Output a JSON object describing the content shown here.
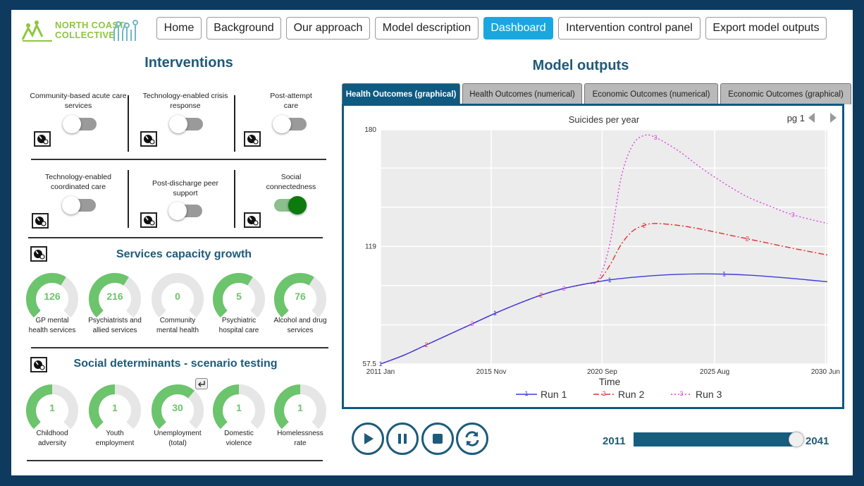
{
  "logo": {
    "line1": "NORTH COAST",
    "line2": "COLLECTIVE"
  },
  "nav": {
    "items": [
      {
        "label": "Home",
        "active": false
      },
      {
        "label": "Background",
        "active": false
      },
      {
        "label": "Our approach",
        "active": false
      },
      {
        "label": "Model description",
        "active": false
      },
      {
        "label": "Dashboard",
        "active": true
      },
      {
        "label": "Intervention control panel",
        "active": false
      },
      {
        "label": "Export model outputs",
        "active": false
      }
    ]
  },
  "interventions": {
    "title": "Interventions",
    "items": [
      {
        "label": "Community-based acute care services",
        "on": false
      },
      {
        "label": "Technology-enabled crisis response",
        "on": false
      },
      {
        "label": "Post-attempt care",
        "on": false
      },
      {
        "label": "Technology-enabled coordinated care",
        "on": false
      },
      {
        "label": "Post-discharge peer support",
        "on": false
      },
      {
        "label": "Social connectedness",
        "on": true
      }
    ]
  },
  "capacity": {
    "title": "Services capacity growth",
    "gauges": [
      {
        "value": "126",
        "label": "GP mental health services",
        "fill": 0.62
      },
      {
        "value": "216",
        "label": "Psychiatrists and allied services",
        "fill": 0.62
      },
      {
        "value": "0",
        "label": "Community mental health",
        "fill": 0.0
      },
      {
        "value": "5",
        "label": "Psychiatric hospital care",
        "fill": 0.62
      },
      {
        "value": "76",
        "label": "Alcohol and drug services",
        "fill": 0.62
      }
    ]
  },
  "social": {
    "title": "Social determinants - scenario testing",
    "undo_icon": "undo-icon",
    "gauges": [
      {
        "value": "1",
        "label": "Childhood adversity",
        "fill": 0.5
      },
      {
        "value": "1",
        "label": "Youth employment",
        "fill": 0.5
      },
      {
        "value": "30",
        "label": "Unemployment (total)",
        "fill": 0.65
      },
      {
        "value": "1",
        "label": "Domestic violence",
        "fill": 0.5
      },
      {
        "value": "1",
        "label": "Homelessness rate",
        "fill": 0.5
      }
    ]
  },
  "outputs": {
    "title": "Model outputs",
    "tabs": [
      {
        "label": "Health Outcomes (graphical)",
        "active": true
      },
      {
        "label": "Health Outcomes (numerical)",
        "active": false
      },
      {
        "label": "Economic Outcomes (numerical)",
        "active": false
      },
      {
        "label": "Economic Outcomes (graphical)",
        "active": false
      }
    ],
    "page_label": "pg 1"
  },
  "chart_data": {
    "type": "line",
    "title": "Suicides per year",
    "xlabel": "Time",
    "ylabel": "",
    "xlim": [
      2011,
      2030.5
    ],
    "ylim": [
      57.5,
      180
    ],
    "x_ticks": [
      {
        "label": "2011 Jan",
        "x": 2011.0
      },
      {
        "label": "2015 Nov",
        "x": 2015.83
      },
      {
        "label": "2020 Sep",
        "x": 2020.67
      },
      {
        "label": "2025 Aug",
        "x": 2025.58
      },
      {
        "label": "2030 Jun",
        "x": 2030.42
      }
    ],
    "y_ticks": [
      57.5,
      119,
      180
    ],
    "grid": true,
    "legend": "bottom",
    "series": [
      {
        "name": "Run 1",
        "marker": "1",
        "color": "#3b3bdc",
        "dash": "solid",
        "x": [
          2011,
          2012,
          2013,
          2014,
          2015,
          2016,
          2017,
          2018,
          2019,
          2020,
          2020.5,
          2021,
          2022,
          2023,
          2024,
          2025,
          2026,
          2027,
          2028,
          2029,
          2030.5
        ],
        "y": [
          57.5,
          62,
          67.5,
          73,
          78.5,
          84,
          89,
          93.5,
          97,
          99.5,
          100.5,
          101.5,
          102.8,
          103.8,
          104.4,
          104.6,
          104.5,
          104,
          103.2,
          102.2,
          100.5
        ]
      },
      {
        "name": "Run 2",
        "marker": "2",
        "color": "#e03030",
        "dash": "dashdot",
        "x": [
          2011,
          2012,
          2013,
          2014,
          2015,
          2016,
          2017,
          2018,
          2019,
          2020,
          2020.5,
          2021,
          2021.5,
          2022,
          2022.5,
          2023,
          2024,
          2025,
          2026,
          2027,
          2028,
          2029,
          2030.5
        ],
        "y": [
          57.5,
          62,
          67.5,
          73,
          78.5,
          84,
          89,
          93.5,
          97,
          99.5,
          101,
          109,
          120,
          127,
          130,
          131,
          130,
          128,
          125.5,
          123,
          120.5,
          118,
          114.5
        ]
      },
      {
        "name": "Run 3",
        "marker": "3",
        "color": "#e040e0",
        "dash": "dotted",
        "x": [
          2011,
          2012,
          2013,
          2014,
          2015,
          2016,
          2017,
          2018,
          2019,
          2020,
          2020.5,
          2021,
          2021.5,
          2022,
          2022.5,
          2023,
          2024,
          2025,
          2026,
          2027,
          2028,
          2029,
          2030.5
        ],
        "y": [
          57.5,
          62,
          67.5,
          73,
          78.5,
          84,
          89,
          93.5,
          97,
          99.5,
          101.5,
          120,
          155,
          172,
          177,
          176,
          169,
          160,
          152,
          145,
          140,
          135.5,
          131
        ]
      }
    ]
  },
  "timeline": {
    "start_year": "2011",
    "end_year": "2041",
    "position": 0.98
  }
}
